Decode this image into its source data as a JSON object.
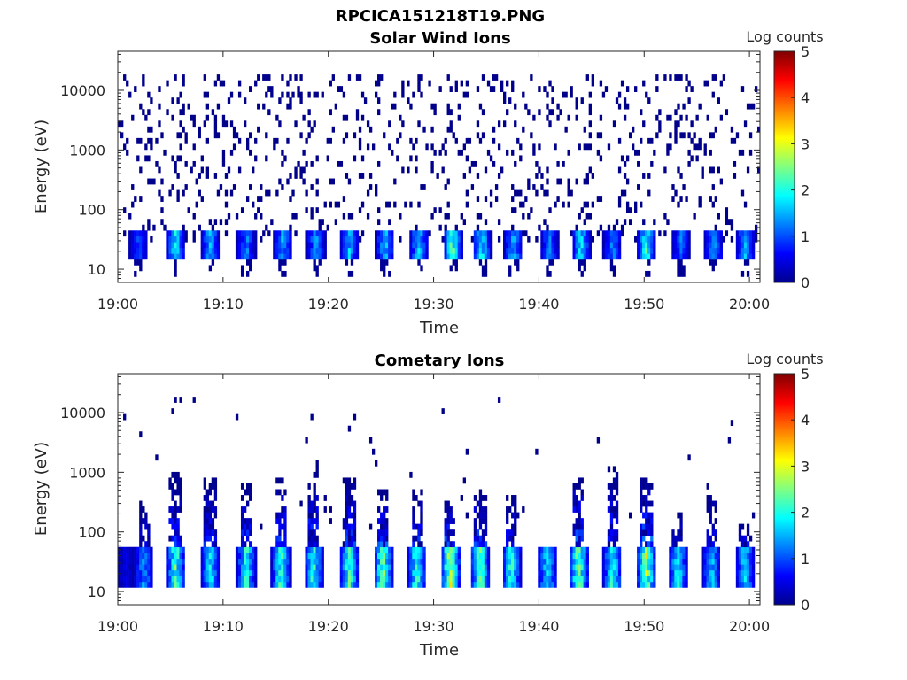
{
  "figure": {
    "main_title": "RPCICA151218T19.PNG"
  },
  "colorbar": {
    "label": "Log counts",
    "ticks": [
      "0",
      "1",
      "2",
      "3",
      "4",
      "5"
    ]
  },
  "colors": {
    "text": "#262626",
    "background": "#ffffff",
    "colormap": [
      "#00008f",
      "#0000ff",
      "#0080ff",
      "#00ffff",
      "#80ff80",
      "#ffff00",
      "#ff8000",
      "#ff0000",
      "#800000"
    ]
  },
  "chart_data": [
    {
      "type": "heatmap",
      "title": "Solar Wind Ions",
      "xlabel": "Time",
      "ylabel": "Energy (eV)",
      "x_ticks": [
        "19:00",
        "19:10",
        "19:20",
        "19:30",
        "19:40",
        "19:50",
        "20:00"
      ],
      "y_ticks": [
        "10",
        "100",
        "1000",
        "10000"
      ],
      "yscale": "log",
      "xlim": [
        "19:00",
        "20:01"
      ],
      "ylim": [
        6,
        45000
      ],
      "colorbar_range": [
        0,
        5
      ],
      "pulse_times_min": [
        2,
        5.5,
        8.8,
        12.2,
        15.7,
        18.8,
        22,
        25.4,
        28.6,
        31.8,
        34.6,
        37.6,
        41,
        44,
        47,
        50.2,
        53.5,
        56.6,
        59.6
      ],
      "pulse_peak_log_counts": [
        1.2,
        2.2,
        1.9,
        1.6,
        1.8,
        1.7,
        1.9,
        2.0,
        2.1,
        2.9,
        2.3,
        2.0,
        1.6,
        2.2,
        1.6,
        2.5,
        1.4,
        1.8,
        1.9
      ],
      "pulse_energy_range_eV": [
        15,
        45
      ],
      "background_energy_range_eV": [
        30,
        20000
      ],
      "background_level_log_counts": 0
    },
    {
      "type": "heatmap",
      "title": "Cometary Ions",
      "xlabel": "Time",
      "ylabel": "Energy (eV)",
      "x_ticks": [
        "19:00",
        "19:10",
        "19:20",
        "19:30",
        "19:40",
        "19:50",
        "20:00"
      ],
      "y_ticks": [
        "10",
        "100",
        "1000",
        "10000"
      ],
      "yscale": "log",
      "xlim": [
        "19:00",
        "20:01"
      ],
      "ylim": [
        6,
        45000
      ],
      "colorbar_range": [
        0,
        5
      ],
      "pulse_times_min": [
        0.8,
        2.5,
        5.5,
        8.8,
        12.2,
        15.5,
        18.6,
        22,
        25.2,
        28.4,
        31.6,
        34.4,
        37.4,
        40.8,
        43.8,
        47,
        50.2,
        53.2,
        56.4,
        59.6
      ],
      "pulse_peak_log_counts": [
        0.6,
        1.8,
        2.8,
        2.4,
        2.6,
        2.7,
        2.6,
        2.8,
        3.2,
        2.8,
        3.6,
        3.0,
        2.6,
        2.4,
        3.2,
        2.6,
        3.4,
        2.4,
        2.0,
        2.2
      ],
      "pulse_top_energy_eV": [
        60,
        300,
        1000,
        800,
        600,
        900,
        1300,
        900,
        500,
        500,
        350,
        500,
        400,
        60,
        1000,
        1200,
        1000,
        200,
        600,
        150
      ],
      "pulse_energy_range_eV": [
        12,
        50
      ],
      "background_level_log_counts": 0
    }
  ]
}
